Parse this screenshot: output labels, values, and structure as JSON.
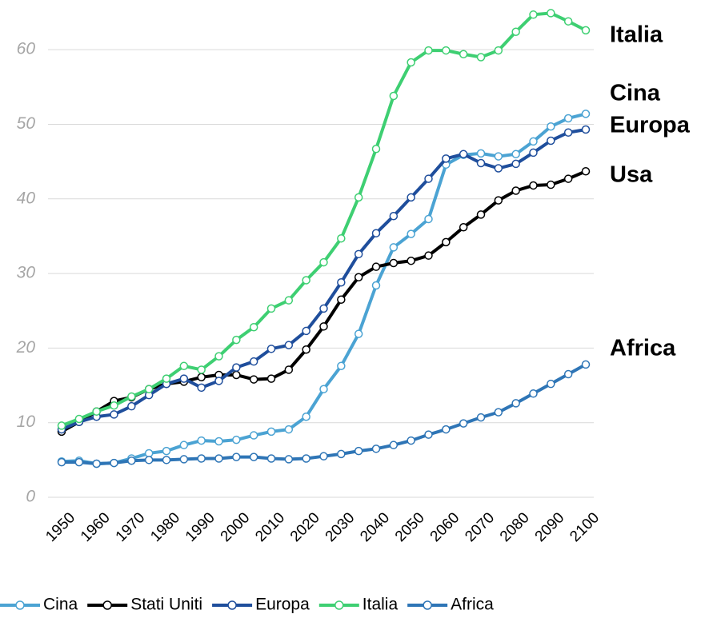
{
  "chart_data": {
    "type": "line",
    "x": [
      1950,
      1955,
      1960,
      1965,
      1970,
      1975,
      1980,
      1985,
      1990,
      1995,
      2000,
      2005,
      2010,
      2015,
      2020,
      2025,
      2030,
      2035,
      2040,
      2045,
      2050,
      2055,
      2060,
      2065,
      2070,
      2075,
      2080,
      2085,
      2090,
      2095,
      2100
    ],
    "xlim": [
      1950,
      2100
    ],
    "xticks": [
      1950,
      1960,
      1970,
      1980,
      1990,
      2000,
      2010,
      2020,
      2030,
      2040,
      2050,
      2060,
      2070,
      2080,
      2090,
      2100
    ],
    "ylim": [
      0,
      65
    ],
    "yticks": [
      0,
      10,
      20,
      30,
      40,
      50,
      60
    ],
    "grid": true,
    "legend": "bottom",
    "annotations": [
      "Italia",
      "Cina",
      "Europa",
      "Usa",
      "Africa"
    ],
    "series": [
      {
        "name": "Cina",
        "color": "#4ba3d3",
        "values": [
          4.8,
          4.9,
          4.5,
          4.6,
          5.2,
          5.9,
          6.2,
          7.0,
          7.6,
          7.5,
          7.7,
          8.3,
          8.8,
          9.1,
          10.8,
          14.5,
          17.6,
          21.9,
          28.4,
          33.5,
          35.3,
          37.3,
          44.6,
          45.9,
          46.1,
          45.7,
          46.0,
          47.7,
          49.7,
          50.8,
          51.4
        ]
      },
      {
        "name": "Stati Uniti",
        "color": "#000000",
        "values": [
          8.8,
          10.1,
          11.5,
          12.9,
          13.4,
          14.5,
          15.2,
          15.5,
          16.1,
          16.4,
          16.4,
          15.8,
          15.9,
          17.1,
          19.8,
          22.9,
          26.5,
          29.5,
          30.9,
          31.4,
          31.7,
          32.4,
          34.2,
          36.2,
          37.9,
          39.8,
          41.1,
          41.8,
          41.9,
          42.7,
          43.7
        ]
      },
      {
        "name": "Europa",
        "color": "#1f4e9c",
        "values": [
          9.1,
          10.1,
          10.8,
          11.1,
          12.2,
          13.7,
          15.2,
          15.9,
          14.7,
          15.6,
          17.4,
          18.2,
          19.9,
          20.4,
          22.3,
          25.3,
          28.8,
          32.6,
          35.4,
          37.7,
          40.2,
          42.7,
          45.4,
          46.0,
          44.8,
          44.1,
          44.7,
          46.2,
          47.8,
          48.9,
          49.3
        ]
      },
      {
        "name": "Italia",
        "color": "#3ecf72",
        "values": [
          9.6,
          10.5,
          11.5,
          12.3,
          13.5,
          14.5,
          15.9,
          17.6,
          17.1,
          18.9,
          21.1,
          22.8,
          25.3,
          26.4,
          29.1,
          31.5,
          34.7,
          40.2,
          46.7,
          53.8,
          58.3,
          59.9,
          59.9,
          59.4,
          59.0,
          59.9,
          62.4,
          64.7,
          64.9,
          63.8,
          62.6
        ]
      },
      {
        "name": "Africa",
        "color": "#2e75b6",
        "values": [
          4.7,
          4.7,
          4.5,
          4.6,
          4.9,
          5.0,
          5.0,
          5.1,
          5.2,
          5.2,
          5.4,
          5.4,
          5.2,
          5.1,
          5.2,
          5.5,
          5.8,
          6.2,
          6.5,
          7.0,
          7.6,
          8.4,
          9.1,
          9.9,
          10.7,
          11.4,
          12.6,
          13.9,
          15.2,
          16.5,
          17.8
        ]
      }
    ]
  }
}
